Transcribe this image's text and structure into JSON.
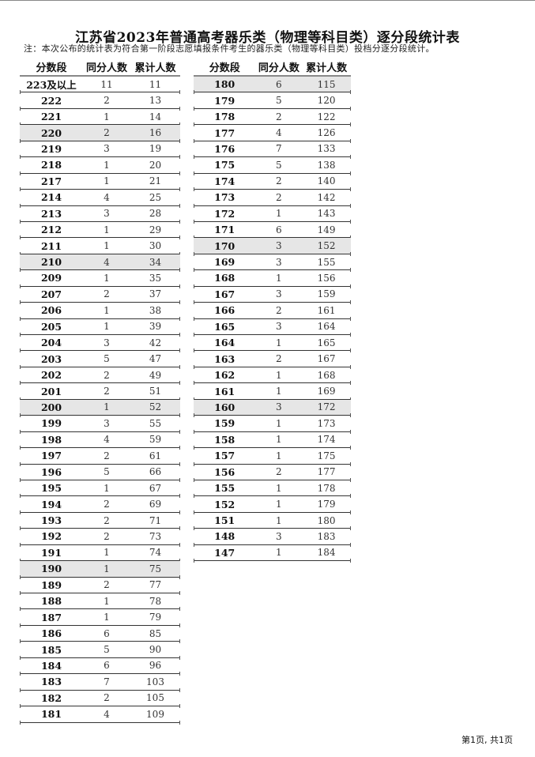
{
  "title": "江苏省2023年普通高考器乐类（物理等科目类）逐分段统计表",
  "note": "注：本次公布的统计表为符合第一阶段志愿填报条件考生的器乐类（物理等科目类）投档分逐分段统计。",
  "columns": [
    "分数段",
    "同分人数",
    "累计人数"
  ],
  "highlight_color": "#e6e6e6",
  "left_rows": [
    [
      "223及以上",
      "11",
      "11"
    ],
    [
      "222",
      "2",
      "13"
    ],
    [
      "221",
      "1",
      "14"
    ],
    [
      "220",
      "2",
      "16"
    ],
    [
      "219",
      "3",
      "19"
    ],
    [
      "218",
      "1",
      "20"
    ],
    [
      "217",
      "1",
      "21"
    ],
    [
      "214",
      "4",
      "25"
    ],
    [
      "213",
      "3",
      "28"
    ],
    [
      "212",
      "1",
      "29"
    ],
    [
      "211",
      "1",
      "30"
    ],
    [
      "210",
      "4",
      "34"
    ],
    [
      "209",
      "1",
      "35"
    ],
    [
      "207",
      "2",
      "37"
    ],
    [
      "206",
      "1",
      "38"
    ],
    [
      "205",
      "1",
      "39"
    ],
    [
      "204",
      "3",
      "42"
    ],
    [
      "203",
      "5",
      "47"
    ],
    [
      "202",
      "2",
      "49"
    ],
    [
      "201",
      "2",
      "51"
    ],
    [
      "200",
      "1",
      "52"
    ],
    [
      "199",
      "3",
      "55"
    ],
    [
      "198",
      "4",
      "59"
    ],
    [
      "197",
      "2",
      "61"
    ],
    [
      "196",
      "5",
      "66"
    ],
    [
      "195",
      "1",
      "67"
    ],
    [
      "194",
      "2",
      "69"
    ],
    [
      "193",
      "2",
      "71"
    ],
    [
      "192",
      "2",
      "73"
    ],
    [
      "191",
      "1",
      "74"
    ],
    [
      "190",
      "1",
      "75"
    ],
    [
      "189",
      "2",
      "77"
    ],
    [
      "188",
      "1",
      "78"
    ],
    [
      "187",
      "1",
      "79"
    ],
    [
      "186",
      "6",
      "85"
    ],
    [
      "185",
      "5",
      "90"
    ],
    [
      "184",
      "6",
      "96"
    ],
    [
      "183",
      "7",
      "103"
    ],
    [
      "182",
      "2",
      "105"
    ],
    [
      "181",
      "4",
      "109"
    ]
  ],
  "right_rows": [
    [
      "180",
      "6",
      "115"
    ],
    [
      "179",
      "5",
      "120"
    ],
    [
      "178",
      "2",
      "122"
    ],
    [
      "177",
      "4",
      "126"
    ],
    [
      "176",
      "7",
      "133"
    ],
    [
      "175",
      "5",
      "138"
    ],
    [
      "174",
      "2",
      "140"
    ],
    [
      "173",
      "2",
      "142"
    ],
    [
      "172",
      "1",
      "143"
    ],
    [
      "171",
      "6",
      "149"
    ],
    [
      "170",
      "3",
      "152"
    ],
    [
      "169",
      "3",
      "155"
    ],
    [
      "168",
      "1",
      "156"
    ],
    [
      "167",
      "3",
      "159"
    ],
    [
      "166",
      "2",
      "161"
    ],
    [
      "165",
      "3",
      "164"
    ],
    [
      "164",
      "1",
      "165"
    ],
    [
      "163",
      "2",
      "167"
    ],
    [
      "162",
      "1",
      "168"
    ],
    [
      "161",
      "1",
      "169"
    ],
    [
      "160",
      "3",
      "172"
    ],
    [
      "159",
      "1",
      "173"
    ],
    [
      "158",
      "1",
      "174"
    ],
    [
      "157",
      "1",
      "175"
    ],
    [
      "156",
      "2",
      "177"
    ],
    [
      "155",
      "1",
      "178"
    ],
    [
      "152",
      "1",
      "179"
    ],
    [
      "151",
      "1",
      "180"
    ],
    [
      "148",
      "3",
      "183"
    ],
    [
      "147",
      "1",
      "184"
    ]
  ],
  "highlighted_scores": [
    "220",
    "210",
    "200",
    "190",
    "180",
    "170",
    "160"
  ],
  "footer": "第1页, 共1页"
}
